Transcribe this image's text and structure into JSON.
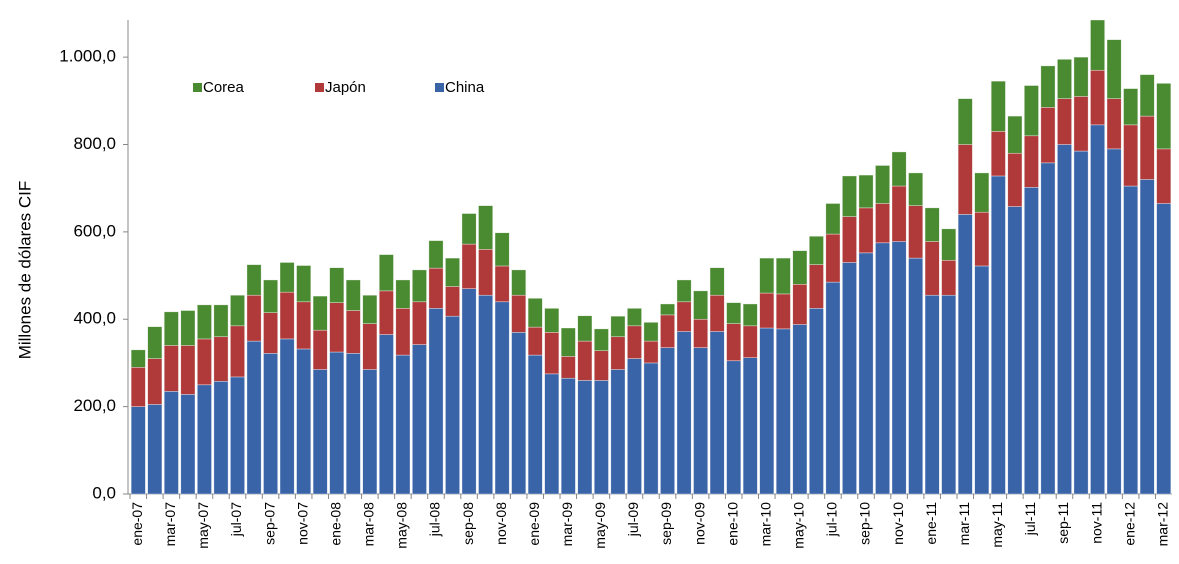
{
  "chart_data": {
    "type": "stacked_bar",
    "y_label": "Millones de dólares CIF",
    "categories": [
      "ene-07",
      null,
      "mar-07",
      null,
      "may-07",
      null,
      "jul-07",
      null,
      "sep-07",
      null,
      "nov-07",
      null,
      "ene-08",
      null,
      "mar-08",
      null,
      "may-08",
      null,
      "jul-08",
      null,
      "sep-08",
      null,
      "nov-08",
      null,
      "ene-09",
      null,
      "mar-09",
      null,
      "may-09",
      null,
      "jul-09",
      null,
      "sep-09",
      null,
      "nov-09",
      null,
      "ene-10",
      null,
      "mar-10",
      null,
      "may-10",
      null,
      "jul-10",
      null,
      "sep-10",
      null,
      "nov-10",
      null,
      "ene-11",
      null,
      "mar-11",
      null,
      "may-11",
      null,
      "jul-11",
      null,
      "sep-11",
      null,
      "nov-11",
      null,
      "ene-12",
      null,
      "mar-12"
    ],
    "series": [
      {
        "name": "China",
        "color": "#3a64a8",
        "values": [
          200,
          205,
          235,
          228,
          250,
          258,
          268,
          350,
          322,
          355,
          332,
          285,
          325,
          322,
          285,
          365,
          318,
          342,
          425,
          407,
          470,
          455,
          440,
          370,
          318,
          275,
          265,
          260,
          260,
          285,
          310,
          300,
          335,
          372,
          335,
          372,
          305,
          312,
          380,
          378,
          388,
          425,
          485,
          530,
          552,
          575,
          578,
          540,
          455,
          455,
          640,
          522,
          728,
          658,
          702,
          758,
          800,
          785,
          845,
          790,
          705,
          720,
          665
        ]
      },
      {
        "name": "Japón",
        "color": "#b03a3a",
        "values": [
          90,
          105,
          105,
          112,
          105,
          102,
          117,
          105,
          93,
          107,
          108,
          90,
          113,
          98,
          105,
          100,
          107,
          98,
          92,
          68,
          102,
          105,
          82,
          85,
          64,
          95,
          50,
          90,
          68,
          75,
          75,
          50,
          75,
          68,
          65,
          83,
          85,
          73,
          80,
          80,
          92,
          100,
          110,
          105,
          103,
          90,
          127,
          120,
          123,
          80,
          160,
          123,
          102,
          122,
          118,
          127,
          105,
          125,
          125,
          115,
          140,
          145,
          125
        ]
      },
      {
        "name": "Corea",
        "color": "#4a8a30",
        "values": [
          40,
          73,
          77,
          80,
          78,
          73,
          70,
          70,
          75,
          68,
          83,
          78,
          80,
          70,
          65,
          83,
          65,
          73,
          63,
          65,
          70,
          100,
          76,
          58,
          66,
          55,
          65,
          58,
          50,
          47,
          40,
          43,
          25,
          50,
          65,
          63,
          48,
          50,
          80,
          82,
          77,
          65,
          70,
          93,
          75,
          87,
          78,
          75,
          77,
          72,
          105,
          90,
          115,
          85,
          115,
          95,
          90,
          90,
          115,
          135,
          83,
          95,
          150
        ]
      }
    ],
    "ylim": [
      0,
      1085
    ],
    "yticks": [
      {
        "value": 0,
        "label": "0,0"
      },
      {
        "value": 200,
        "label": "200,0"
      },
      {
        "value": 400,
        "label": "400,0"
      },
      {
        "value": 600,
        "label": "600,0"
      },
      {
        "value": 800,
        "label": "800,0"
      },
      {
        "value": 1000,
        "label": "1.000,0"
      }
    ],
    "legend": "top-left"
  }
}
